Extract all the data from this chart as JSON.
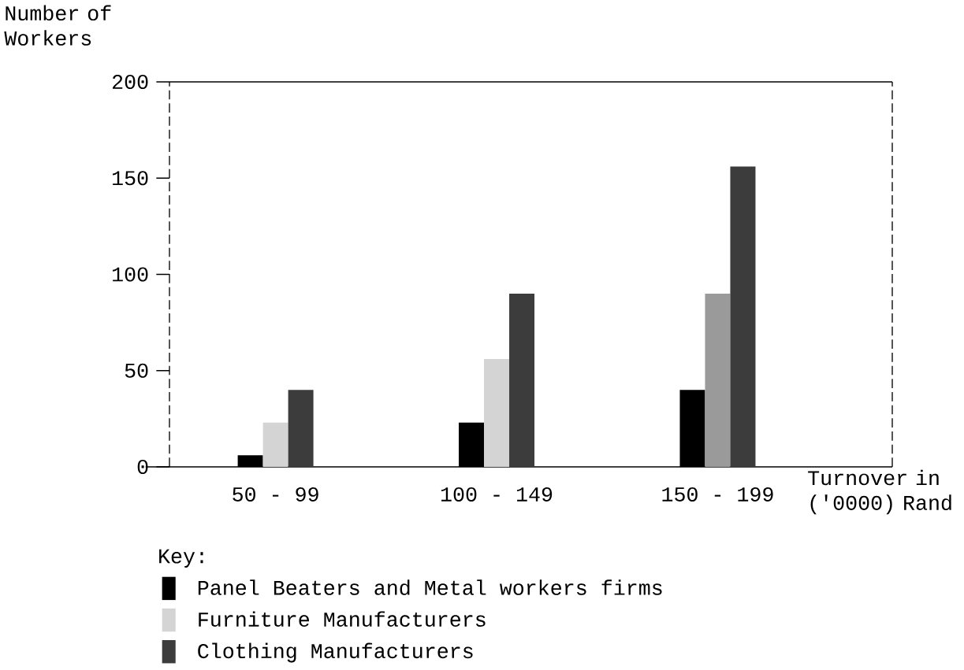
{
  "chart_data": {
    "type": "bar",
    "xlabel": "Turnover in ('0000) Rand",
    "ylabel": "Number of Workers",
    "legend_title": "Key:",
    "categories": [
      "50 - 99",
      "100 - 149",
      "150 - 199"
    ],
    "series": [
      {
        "name": "Panel Beaters and Metal workers firms",
        "color": "#000000",
        "values": [
          6,
          23,
          40
        ]
      },
      {
        "name": "Furniture Manufacturers",
        "color": "#d4d4d4",
        "colors": [
          "#d4d4d4",
          "#d4d4d4",
          "#9a9a9a"
        ],
        "values": [
          23,
          56,
          90
        ]
      },
      {
        "name": "Clothing Manufacturers",
        "color": "#3c3c3c",
        "values": [
          40,
          90,
          156
        ]
      }
    ],
    "ylim": [
      0,
      200
    ],
    "yticks": [
      0,
      50,
      100,
      150,
      200
    ],
    "legend": "bottom left"
  }
}
